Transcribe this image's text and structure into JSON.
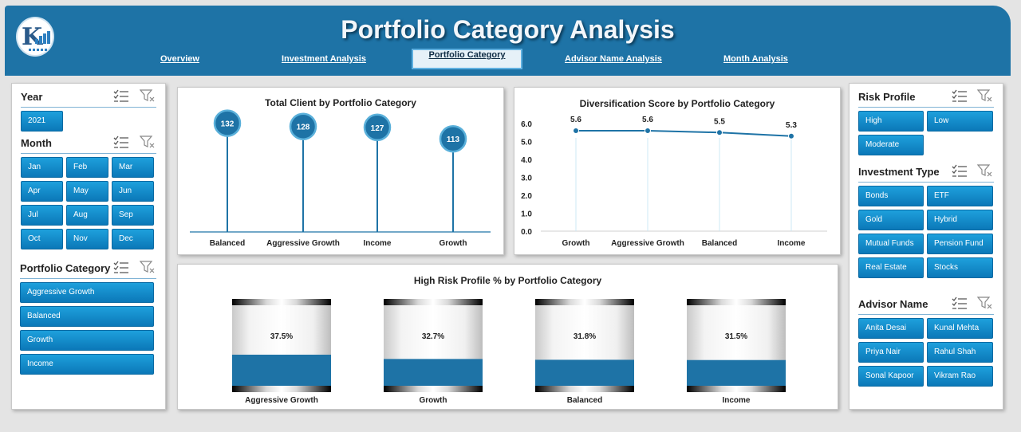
{
  "header": {
    "title": "Portfolio Category Analysis",
    "nav": [
      {
        "label": "Overview",
        "active": false
      },
      {
        "label": "Investment  Analysis",
        "active": false
      },
      {
        "label": "Portfolio Category",
        "active": true
      },
      {
        "label": "Advisor Name Analysis",
        "active": false
      },
      {
        "label": "Month Analysis",
        "active": false
      }
    ]
  },
  "left_slicers": {
    "year": {
      "title": "Year",
      "items": [
        "2021"
      ]
    },
    "month": {
      "title": "Month",
      "items": [
        "Jan",
        "Feb",
        "Mar",
        "Apr",
        "May",
        "Jun",
        "Jul",
        "Aug",
        "Sep",
        "Oct",
        "Nov",
        "Dec"
      ]
    },
    "portfolio_category": {
      "title": "Portfolio Category",
      "items": [
        "Aggressive Growth",
        "Balanced",
        "Growth",
        "Income"
      ]
    }
  },
  "right_slicers": {
    "risk_profile": {
      "title": "Risk Profile",
      "items": [
        "High",
        "Low",
        "Moderate"
      ]
    },
    "investment_type": {
      "title": "Investment Type",
      "items": [
        "Bonds",
        "ETF",
        "Gold",
        "Hybrid",
        "Mutual Funds",
        "Pension Fund",
        "Real Estate",
        "Stocks"
      ]
    },
    "advisor_name": {
      "title": "Advisor Name",
      "items": [
        "Anita Desai",
        "Kunal Mehta",
        "Priya Nair",
        "Rahul Shah",
        "Sonal Kapoor",
        "Vikram Rao"
      ]
    }
  },
  "colors": {
    "header": "#1e73a6",
    "accent": "#1e73a6",
    "button": "#1592d0",
    "line": "#5ab0da"
  },
  "chart_data": [
    {
      "type": "bar",
      "style": "lollipop",
      "title": "Total Client by Portfolio Category",
      "categories": [
        "Balanced",
        "Aggressive Growth",
        "Income",
        "Growth"
      ],
      "values": [
        132,
        128,
        127,
        113
      ],
      "data_labels": [
        "132",
        "128",
        "127",
        "113"
      ]
    },
    {
      "type": "line",
      "title": "Diversification Score by Portfolio Category",
      "categories": [
        "Growth",
        "Aggressive Growth",
        "Balanced",
        "Income"
      ],
      "values": [
        5.6,
        5.6,
        5.5,
        5.3
      ],
      "data_labels": [
        "5.6",
        "5.6",
        "5.5",
        "5.3"
      ],
      "ylim": [
        0,
        6
      ],
      "yticks": [
        "6.0",
        "5.0",
        "4.0",
        "3.0",
        "2.0",
        "1.0",
        "0.0"
      ]
    },
    {
      "type": "bar",
      "style": "cylinder-fill",
      "title": "High Risk Profile % by Portfolio Category",
      "categories": [
        "Aggressive Growth",
        "Growth",
        "Balanced",
        "Income"
      ],
      "values": [
        37.5,
        32.7,
        31.8,
        31.5
      ],
      "data_labels": [
        "37.5%",
        "32.7%",
        "31.8%",
        "31.5%"
      ]
    }
  ]
}
